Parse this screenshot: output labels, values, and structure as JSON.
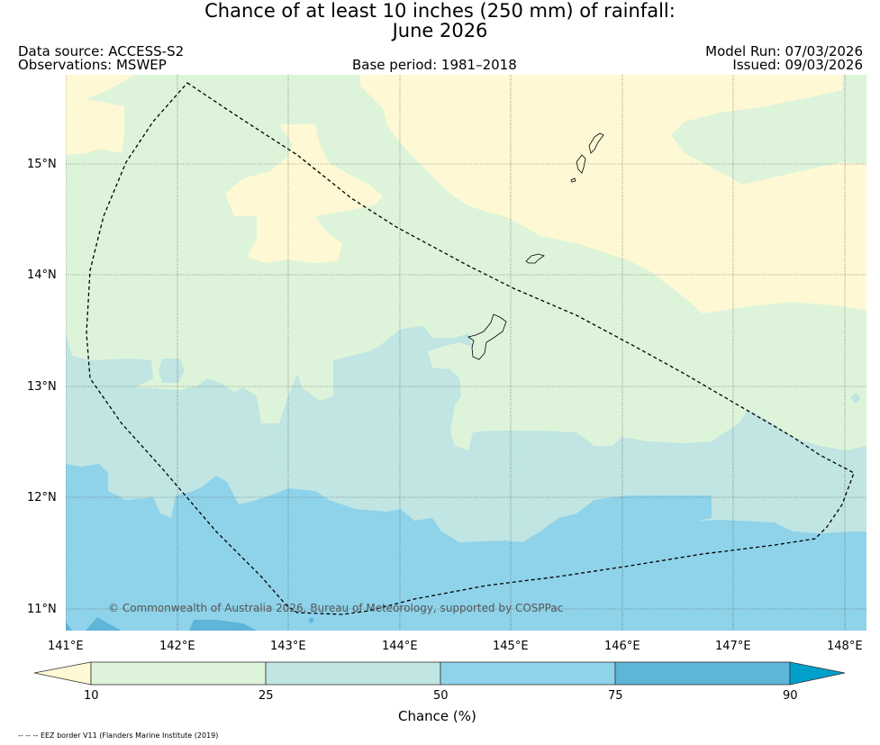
{
  "title": {
    "line1": "Chance of at least 10 inches (250  mm) of rainfall:",
    "line2": "June 2026"
  },
  "header": {
    "data_source": "Data source: ACCESS-S2",
    "observations": "Observations: MSWEP",
    "base_period": "Base period: 1981–2018",
    "model_run": "Model Run: 07/03/2026",
    "issued": "Issued: 09/03/2026"
  },
  "map": {
    "copyright": "© Commonwealth of Australia 2026, Bureau of Meteorology, supported by COSPPac",
    "lon_ticks": [
      "141°E",
      "142°E",
      "143°E",
      "144°E",
      "145°E",
      "146°E",
      "147°E",
      "148°E"
    ],
    "lat_ticks": [
      "15°N",
      "14°N",
      "13°N",
      "12°N",
      "11°N"
    ]
  },
  "colorbar": {
    "title": "Chance (%)",
    "labels": [
      "10",
      "25",
      "50",
      "75",
      "90"
    ],
    "colors": {
      "lt10": "#fef9d4",
      "b10_25": "#def4da",
      "b25_50": "#c0e5e3",
      "b50_75": "#8fd3ea",
      "b75_90": "#5db5d8",
      "gt90": "#00a0cc"
    }
  },
  "footer": {
    "legend": "-- -- -- EEZ border V11 (Flanders Marine Institute (2019)"
  }
}
